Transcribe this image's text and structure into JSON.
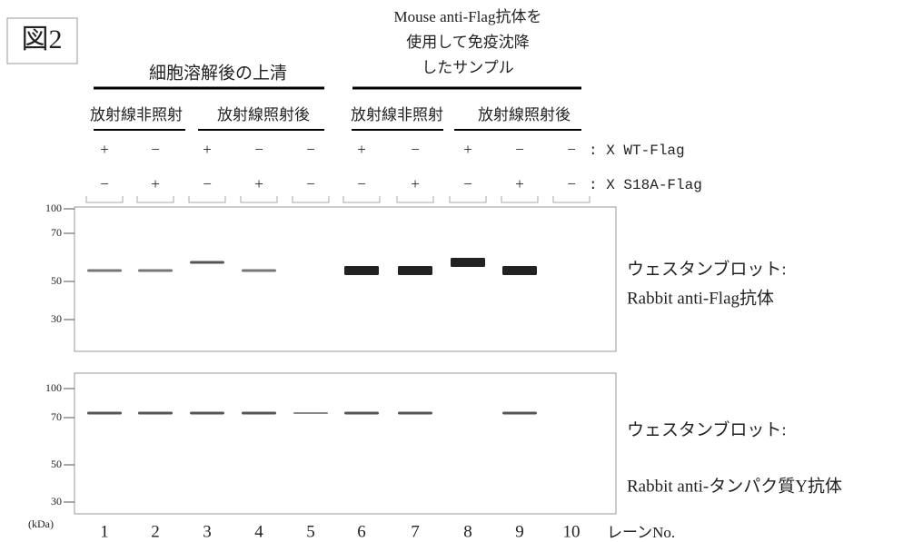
{
  "figure_label": "図2",
  "supernatant_label": "細胞溶解後の上清",
  "ip_label": [
    "Mouse anti-Flag抗体を",
    "使用して免疫沈降",
    "したサンプル"
  ],
  "conditions": [
    "放射線非照射",
    "放射線照射後",
    "放射線非照射",
    "放射線照射後"
  ],
  "rows": [
    {
      "signs": [
        "+",
        "−",
        "+",
        "−",
        "−",
        "+",
        "−",
        "+",
        "−",
        "−"
      ],
      "label": ": X WT-Flag"
    },
    {
      "signs": [
        "−",
        "+",
        "−",
        "+",
        "−",
        "−",
        "+",
        "−",
        "+",
        "−"
      ],
      "label": ": X S18A-Flag"
    }
  ],
  "blots": [
    {
      "ticks": [
        "100",
        "70",
        "50",
        "30"
      ],
      "caption": [
        "ウェスタンブロット:",
        "Rabbit anti-Flag抗体"
      ]
    },
    {
      "ticks": [
        "100",
        "70",
        "50",
        "30"
      ],
      "caption": [
        "ウェスタンブロット:",
        "Rabbit anti-タンパク質Y抗体"
      ]
    }
  ],
  "kda": "(kDa)",
  "lanes": [
    "1",
    "2",
    "3",
    "4",
    "5",
    "6",
    "7",
    "8",
    "9",
    "10"
  ],
  "lane_label": "レーンNo."
}
